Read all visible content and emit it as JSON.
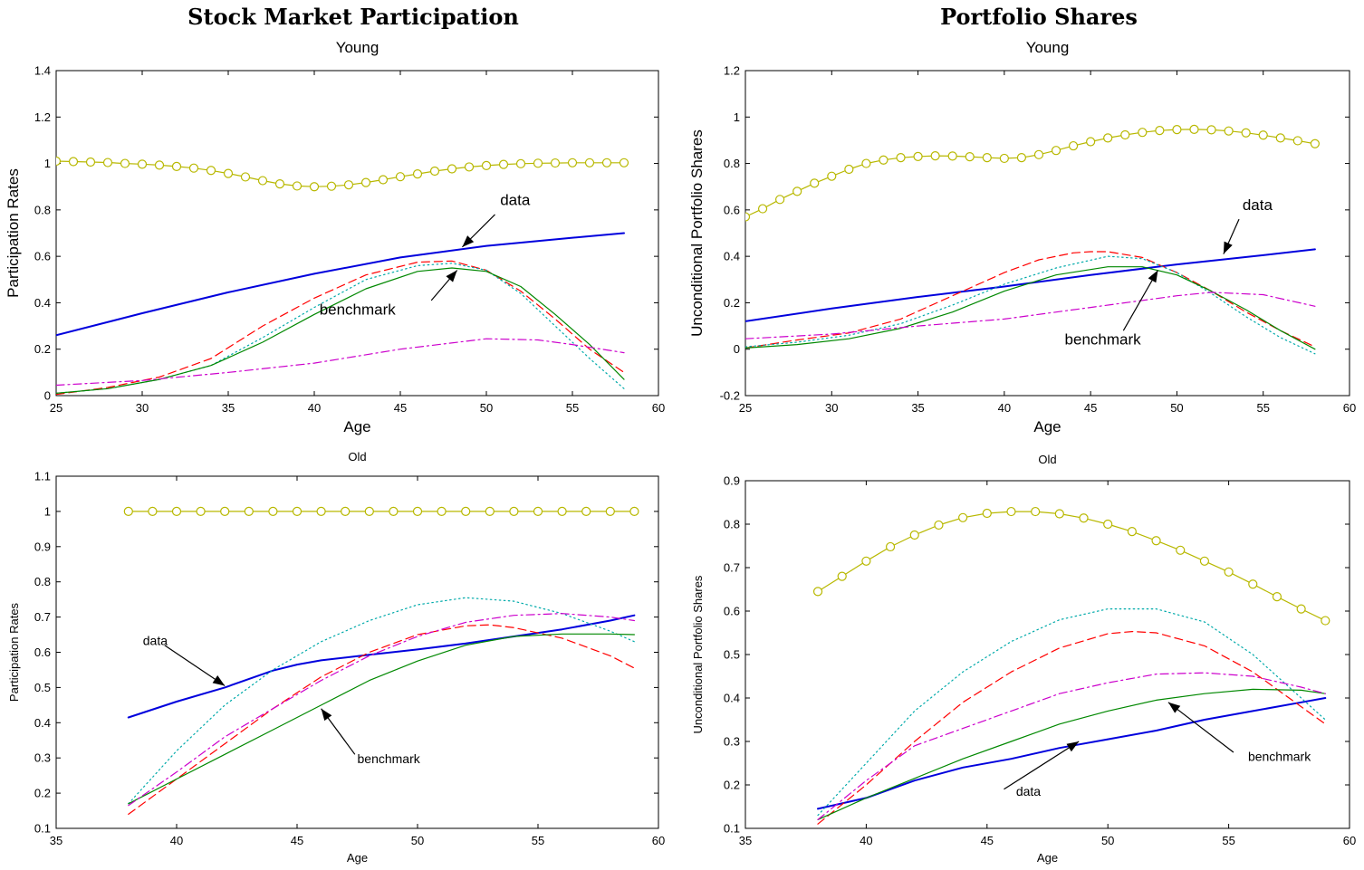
{
  "column_titles": [
    "Stock Market Participation",
    "Portfolio Shares"
  ],
  "chart_data": [
    {
      "type": "line",
      "title": "Young",
      "xlabel": "Age",
      "ylabel": "Participation Rates",
      "xlim": [
        25,
        60
      ],
      "ylim": [
        0,
        1.4
      ],
      "xticks": [
        25,
        30,
        35,
        40,
        45,
        50,
        55,
        60
      ],
      "yticks": [
        0,
        0.2,
        0.4,
        0.6,
        0.8,
        1,
        1.2,
        1.4
      ],
      "grid": false,
      "series": [
        {
          "color": "#b8b800",
          "style": "solid-circle",
          "x": [
            25,
            26,
            27,
            28,
            29,
            30,
            31,
            32,
            33,
            34,
            35,
            36,
            37,
            38,
            39,
            40,
            41,
            42,
            43,
            44,
            45,
            46,
            47,
            48,
            49,
            50,
            51,
            52,
            53,
            54,
            55,
            56,
            57,
            58
          ],
          "y": [
            1.01,
            1.008,
            1.006,
            1.004,
            1.0,
            0.997,
            0.993,
            0.987,
            0.98,
            0.97,
            0.957,
            0.942,
            0.926,
            0.912,
            0.903,
            0.9,
            0.902,
            0.908,
            0.918,
            0.93,
            0.943,
            0.955,
            0.967,
            0.977,
            0.985,
            0.991,
            0.996,
            0.999,
            1.001,
            1.002,
            1.003,
            1.003,
            1.003,
            1.003
          ]
        },
        {
          "name": "data",
          "color": "#0000dd",
          "style": "solid-thick",
          "x": [
            25,
            30,
            35,
            40,
            45,
            50,
            55,
            58
          ],
          "y": [
            0.26,
            0.355,
            0.445,
            0.525,
            0.595,
            0.645,
            0.68,
            0.7
          ]
        },
        {
          "color": "#ff0000",
          "style": "dashed",
          "x": [
            25,
            28,
            31,
            34,
            37,
            40,
            43,
            46,
            48,
            50,
            52,
            54,
            56,
            58
          ],
          "y": [
            0.005,
            0.035,
            0.08,
            0.16,
            0.3,
            0.42,
            0.52,
            0.575,
            0.58,
            0.54,
            0.45,
            0.33,
            0.2,
            0.1
          ]
        },
        {
          "color": "#00aaaa",
          "style": "dotted",
          "x": [
            25,
            28,
            31,
            34,
            37,
            40,
            43,
            46,
            48,
            50,
            52,
            54,
            56,
            58
          ],
          "y": [
            0.01,
            0.03,
            0.07,
            0.13,
            0.25,
            0.38,
            0.5,
            0.56,
            0.57,
            0.54,
            0.44,
            0.3,
            0.16,
            0.03
          ]
        },
        {
          "name": "benchmark",
          "color": "#008800",
          "style": "solid",
          "x": [
            25,
            28,
            31,
            34,
            37,
            40,
            43,
            46,
            48,
            50,
            52,
            54,
            56,
            58
          ],
          "y": [
            0.01,
            0.03,
            0.07,
            0.13,
            0.23,
            0.35,
            0.46,
            0.535,
            0.55,
            0.535,
            0.47,
            0.35,
            0.22,
            0.07
          ]
        },
        {
          "color": "#cc00cc",
          "style": "dashdot",
          "x": [
            25,
            30,
            35,
            40,
            45,
            50,
            53,
            55,
            58
          ],
          "y": [
            0.045,
            0.065,
            0.1,
            0.14,
            0.2,
            0.245,
            0.24,
            0.22,
            0.185
          ]
        }
      ],
      "annotations": [
        {
          "text": "data",
          "x": 50.8,
          "y": 0.82
        },
        {
          "text": "benchmark",
          "x": 40.3,
          "y": 0.35
        }
      ]
    },
    {
      "type": "line",
      "title": "Young",
      "xlabel": "Age",
      "ylabel": "Unconditional Portfolio Shares",
      "xlim": [
        25,
        60
      ],
      "ylim": [
        -0.2,
        1.2
      ],
      "xticks": [
        25,
        30,
        35,
        40,
        45,
        50,
        55,
        60
      ],
      "yticks": [
        -0.2,
        0,
        0.2,
        0.4,
        0.6,
        0.8,
        1,
        1.2
      ],
      "grid": false,
      "series": [
        {
          "color": "#b8b800",
          "style": "solid-circle",
          "x": [
            25,
            26,
            27,
            28,
            29,
            30,
            31,
            32,
            33,
            34,
            35,
            36,
            37,
            38,
            39,
            40,
            41,
            42,
            43,
            44,
            45,
            46,
            47,
            48,
            49,
            50,
            51,
            52,
            53,
            54,
            55,
            56,
            57,
            58
          ],
          "y": [
            0.57,
            0.605,
            0.645,
            0.68,
            0.715,
            0.745,
            0.775,
            0.8,
            0.815,
            0.825,
            0.83,
            0.833,
            0.832,
            0.829,
            0.825,
            0.822,
            0.825,
            0.838,
            0.856,
            0.876,
            0.894,
            0.91,
            0.923,
            0.934,
            0.942,
            0.946,
            0.947,
            0.945,
            0.94,
            0.932,
            0.922,
            0.91,
            0.898,
            0.885
          ]
        },
        {
          "name": "data",
          "color": "#0000dd",
          "style": "solid-thick",
          "x": [
            25,
            30,
            35,
            40,
            45,
            50,
            55,
            58
          ],
          "y": [
            0.12,
            0.175,
            0.225,
            0.27,
            0.32,
            0.365,
            0.405,
            0.43
          ]
        },
        {
          "color": "#ff0000",
          "style": "dashed",
          "x": [
            25,
            28,
            31,
            34,
            37,
            40,
            42,
            44,
            45,
            46,
            48,
            50,
            52,
            54,
            56,
            58
          ],
          "y": [
            0.005,
            0.04,
            0.07,
            0.13,
            0.23,
            0.33,
            0.385,
            0.415,
            0.42,
            0.42,
            0.395,
            0.33,
            0.25,
            0.16,
            0.08,
            0.01
          ]
        },
        {
          "color": "#00aaaa",
          "style": "dotted",
          "x": [
            25,
            28,
            31,
            34,
            37,
            40,
            43,
            46,
            48,
            50,
            52,
            54,
            56,
            58
          ],
          "y": [
            0.01,
            0.03,
            0.06,
            0.11,
            0.19,
            0.28,
            0.35,
            0.4,
            0.39,
            0.33,
            0.24,
            0.14,
            0.05,
            -0.02
          ]
        },
        {
          "name": "benchmark",
          "color": "#008800",
          "style": "solid",
          "x": [
            25,
            28,
            31,
            34,
            37,
            40,
            43,
            46,
            48,
            50,
            52,
            54,
            56,
            58
          ],
          "y": [
            0.005,
            0.02,
            0.045,
            0.09,
            0.16,
            0.25,
            0.32,
            0.355,
            0.355,
            0.32,
            0.25,
            0.17,
            0.08,
            0.0
          ]
        },
        {
          "color": "#cc00cc",
          "style": "dashdot",
          "x": [
            25,
            30,
            35,
            40,
            45,
            50,
            52,
            55,
            58
          ],
          "y": [
            0.045,
            0.065,
            0.1,
            0.13,
            0.18,
            0.23,
            0.245,
            0.235,
            0.185
          ]
        }
      ],
      "annotations": [
        {
          "text": "data",
          "x": 53.8,
          "y": 0.6
        },
        {
          "text": "benchmark",
          "x": 43.5,
          "y": 0.02
        }
      ]
    },
    {
      "type": "line",
      "title": "Old",
      "xlabel": "Age",
      "ylabel": "Participation Rates",
      "xlim": [
        35,
        60
      ],
      "ylim": [
        0.1,
        1.1
      ],
      "xticks": [
        35,
        40,
        45,
        50,
        55,
        60
      ],
      "yticks": [
        0.1,
        0.2,
        0.3,
        0.4,
        0.5,
        0.6,
        0.7,
        0.8,
        0.9,
        1,
        1.1
      ],
      "grid": false,
      "series": [
        {
          "color": "#b8b800",
          "style": "solid-circle",
          "x": [
            38,
            39,
            40,
            41,
            42,
            43,
            44,
            45,
            46,
            47,
            48,
            49,
            50,
            51,
            52,
            53,
            54,
            55,
            56,
            57,
            58,
            59
          ],
          "y": [
            1,
            1,
            1,
            1,
            1,
            1,
            1,
            1,
            1,
            1,
            1,
            1,
            1,
            1,
            1,
            1,
            1,
            1,
            1,
            1,
            1,
            1
          ]
        },
        {
          "name": "data",
          "color": "#0000dd",
          "style": "solid-thick",
          "x": [
            38,
            40,
            42,
            44,
            45,
            46,
            48,
            50,
            52,
            54,
            56,
            58,
            59
          ],
          "y": [
            0.415,
            0.46,
            0.5,
            0.548,
            0.565,
            0.577,
            0.593,
            0.608,
            0.625,
            0.645,
            0.665,
            0.69,
            0.705
          ]
        },
        {
          "color": "#ff0000",
          "style": "dashed",
          "x": [
            38,
            40,
            42,
            44,
            46,
            48,
            50,
            52,
            53,
            54,
            56,
            58,
            59
          ],
          "y": [
            0.14,
            0.24,
            0.34,
            0.44,
            0.53,
            0.6,
            0.65,
            0.675,
            0.678,
            0.67,
            0.64,
            0.59,
            0.555
          ]
        },
        {
          "color": "#00aaaa",
          "style": "dotted",
          "x": [
            38,
            40,
            42,
            44,
            46,
            48,
            50,
            52,
            54,
            56,
            58,
            59
          ],
          "y": [
            0.17,
            0.32,
            0.45,
            0.55,
            0.63,
            0.69,
            0.735,
            0.755,
            0.745,
            0.71,
            0.66,
            0.63
          ]
        },
        {
          "name": "benchmark",
          "color": "#008800",
          "style": "solid",
          "x": [
            38,
            40,
            42,
            44,
            46,
            48,
            50,
            52,
            54,
            56,
            58,
            59
          ],
          "y": [
            0.17,
            0.24,
            0.31,
            0.38,
            0.45,
            0.52,
            0.575,
            0.62,
            0.645,
            0.652,
            0.652,
            0.65
          ]
        },
        {
          "color": "#cc00cc",
          "style": "dashdot",
          "x": [
            38,
            40,
            42,
            44,
            46,
            48,
            50,
            52,
            54,
            56,
            58,
            59
          ],
          "y": [
            0.165,
            0.26,
            0.36,
            0.44,
            0.52,
            0.59,
            0.645,
            0.685,
            0.705,
            0.71,
            0.7,
            0.69
          ]
        }
      ],
      "annotations": [
        {
          "text": "data",
          "x": 38.6,
          "y": 0.62
        },
        {
          "text": "benchmark",
          "x": 47.5,
          "y": 0.285
        }
      ]
    },
    {
      "type": "line",
      "title": "Old",
      "xlabel": "Age",
      "ylabel": "Unconditional Portfolio Shares",
      "xlim": [
        35,
        60
      ],
      "ylim": [
        0.1,
        0.9
      ],
      "xticks": [
        35,
        40,
        45,
        50,
        55,
        60
      ],
      "yticks": [
        0.1,
        0.2,
        0.3,
        0.4,
        0.5,
        0.6,
        0.7,
        0.8,
        0.9
      ],
      "grid": false,
      "series": [
        {
          "color": "#b8b800",
          "style": "solid-circle",
          "x": [
            38,
            39,
            40,
            41,
            42,
            43,
            44,
            45,
            46,
            47,
            48,
            49,
            50,
            51,
            52,
            53,
            54,
            55,
            56,
            57,
            58,
            59
          ],
          "y": [
            0.645,
            0.68,
            0.715,
            0.748,
            0.775,
            0.798,
            0.815,
            0.825,
            0.829,
            0.829,
            0.824,
            0.814,
            0.8,
            0.783,
            0.762,
            0.74,
            0.715,
            0.69,
            0.662,
            0.633,
            0.605,
            0.578
          ]
        },
        {
          "name": "data",
          "color": "#0000dd",
          "style": "solid-thick",
          "x": [
            38,
            40,
            42,
            44,
            46,
            48,
            50,
            52,
            54,
            56,
            58,
            59
          ],
          "y": [
            0.145,
            0.17,
            0.21,
            0.24,
            0.26,
            0.285,
            0.305,
            0.325,
            0.35,
            0.37,
            0.39,
            0.4
          ]
        },
        {
          "color": "#ff0000",
          "style": "dashed",
          "x": [
            38,
            40,
            42,
            44,
            46,
            48,
            50,
            51,
            52,
            54,
            56,
            58,
            59
          ],
          "y": [
            0.11,
            0.2,
            0.3,
            0.39,
            0.46,
            0.515,
            0.548,
            0.553,
            0.55,
            0.52,
            0.46,
            0.38,
            0.34
          ]
        },
        {
          "color": "#00aaaa",
          "style": "dotted",
          "x": [
            38,
            40,
            42,
            44,
            46,
            48,
            50,
            52,
            54,
            56,
            58,
            59
          ],
          "y": [
            0.13,
            0.25,
            0.37,
            0.46,
            0.53,
            0.58,
            0.605,
            0.605,
            0.575,
            0.5,
            0.4,
            0.35
          ]
        },
        {
          "name": "benchmark",
          "color": "#008800",
          "style": "solid",
          "x": [
            38,
            40,
            42,
            44,
            46,
            48,
            50,
            52,
            54,
            56,
            58,
            59
          ],
          "y": [
            0.12,
            0.17,
            0.215,
            0.26,
            0.3,
            0.34,
            0.37,
            0.395,
            0.41,
            0.42,
            0.418,
            0.41
          ]
        },
        {
          "color": "#cc00cc",
          "style": "dashdot",
          "x": [
            38,
            40,
            42,
            44,
            46,
            48,
            50,
            52,
            54,
            56,
            58,
            59
          ],
          "y": [
            0.12,
            0.21,
            0.29,
            0.33,
            0.37,
            0.41,
            0.435,
            0.455,
            0.458,
            0.45,
            0.425,
            0.41
          ]
        }
      ],
      "annotations": [
        {
          "text": "data",
          "x": 46.2,
          "y": 0.175
        },
        {
          "text": "benchmark",
          "x": 55.8,
          "y": 0.255
        }
      ]
    }
  ]
}
